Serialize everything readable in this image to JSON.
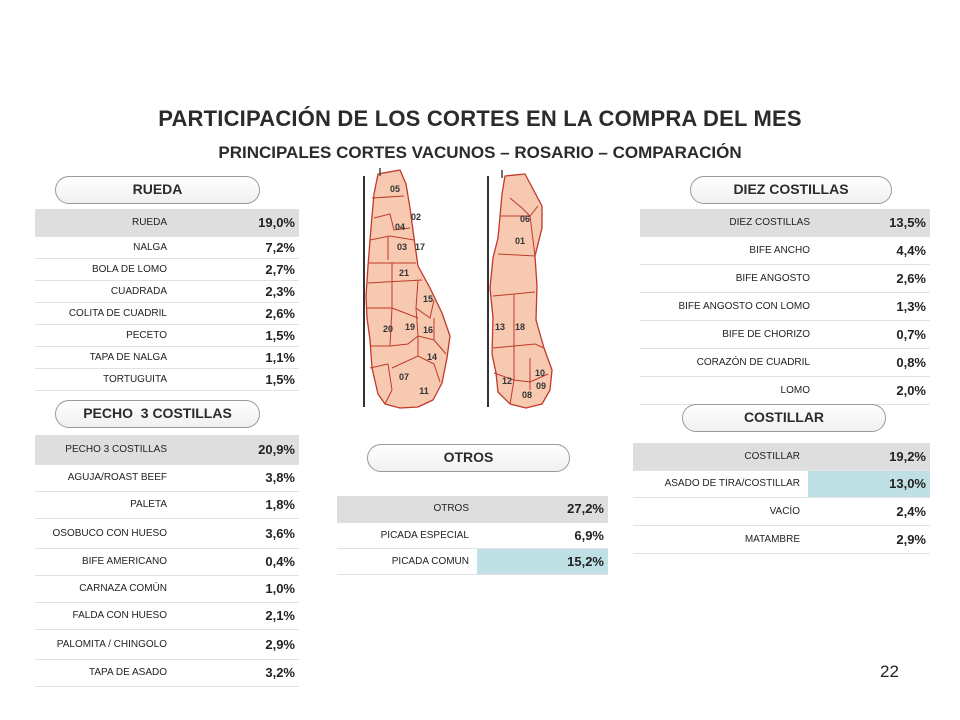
{
  "title": "PARTICIPACIÓN DE LOS CORTES EN LA COMPRA DEL MES",
  "subtitle": "PRINCIPALES CORTES VACUNOS – ROSARIO – COMPARACIÓN",
  "page_number": "22",
  "colors": {
    "header_row": "#dedede",
    "highlight": "#bfe0e4",
    "meat": "#f6c9b0",
    "meat_outline": "#c0392b"
  },
  "carcass_labels": {
    "left": [
      "05",
      "02",
      "04",
      "03",
      "17",
      "21",
      "15",
      "19",
      "16",
      "20",
      "14",
      "07",
      "11"
    ],
    "right": [
      "06",
      "01",
      "13",
      "18",
      "10",
      "09",
      "12",
      "08"
    ]
  },
  "rueda": {
    "title": "RUEDA",
    "rows": [
      {
        "label": "RUEDA",
        "value": "19,0%"
      },
      {
        "label": "NALGA",
        "value": "7,2%"
      },
      {
        "label": "BOLA DE LOMO",
        "value": "2,7%"
      },
      {
        "label": "CUADRADA",
        "value": "2,3%"
      },
      {
        "label": "COLITA DE CUADRIL",
        "value": "2,6%"
      },
      {
        "label": "PECETO",
        "value": "1,5%"
      },
      {
        "label": "TAPA DE NALGA",
        "value": "1,1%"
      },
      {
        "label": "TORTUGUITA",
        "value": "1,5%"
      }
    ]
  },
  "pecho": {
    "title": "PECHO  3 COSTILLAS",
    "rows": [
      {
        "label": "PECHO 3 COSTILLAS",
        "value": "20,9%"
      },
      {
        "label": "AGUJA/ROAST BEEF",
        "value": "3,8%"
      },
      {
        "label": "PALETA",
        "value": "1,8%"
      },
      {
        "label": "OSOBUCO CON HUESO",
        "value": "3,6%"
      },
      {
        "label": "BIFE AMERICANO",
        "value": "0,4%"
      },
      {
        "label": "CARNAZA COMÚN",
        "value": "1,0%"
      },
      {
        "label": "FALDA CON HUESO",
        "value": "2,1%"
      },
      {
        "label": "PALOMITA / CHINGOLO",
        "value": "2,9%"
      },
      {
        "label": "TAPA DE ASADO",
        "value": "3,2%"
      }
    ]
  },
  "otros": {
    "title": "OTROS",
    "rows": [
      {
        "label": "OTROS",
        "value": "27,2%"
      },
      {
        "label": "PICADA ESPECIAL",
        "value": "6,9%"
      },
      {
        "label": "PICADA COMUN",
        "value": "15,2%"
      }
    ]
  },
  "diez": {
    "title": "DIEZ COSTILLAS",
    "rows": [
      {
        "label": "DIEZ COSTILLAS",
        "value": "13,5%"
      },
      {
        "label": "BIFE ANCHO",
        "value": "4,4%"
      },
      {
        "label": "BIFE ANGOSTO",
        "value": "2,6%"
      },
      {
        "label": "BIFE ANGOSTO CON LOMO",
        "value": "1,3%"
      },
      {
        "label": "BIFE DE CHORIZO",
        "value": "0,7%"
      },
      {
        "label": "CORAZÓN DE CUADRIL",
        "value": "0,8%"
      },
      {
        "label": "LOMO",
        "value": "2,0%"
      }
    ]
  },
  "costillar": {
    "title": "COSTILLAR",
    "rows": [
      {
        "label": "COSTILLAR",
        "value": "19,2%"
      },
      {
        "label": "ASADO DE TIRA/COSTILLAR",
        "value": "13,0%"
      },
      {
        "label": "VACÍO",
        "value": "2,4%"
      },
      {
        "label": "MATAMBRE",
        "value": "2,9%"
      }
    ]
  }
}
